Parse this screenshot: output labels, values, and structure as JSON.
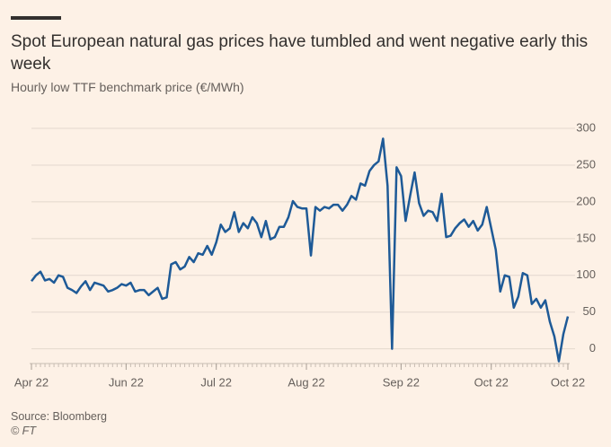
{
  "chart_data": {
    "type": "line",
    "title": "Spot European natural gas prices have tumbled and went negative early this week",
    "subtitle": "Hourly low TTF benchmark price (€/MWh)",
    "source": "Source: Bloomberg",
    "credit": "© FT",
    "color": "#1e5a97",
    "grid": true,
    "ylim": [
      -20,
      300
    ],
    "yticks": [
      0,
      50,
      100,
      150,
      200,
      250,
      300
    ],
    "categories": [
      "Apr 22",
      null,
      null,
      null,
      null,
      null,
      null,
      null,
      null,
      null,
      null,
      null,
      null,
      null,
      null,
      null,
      null,
      null,
      null,
      null,
      null,
      "Jun 22",
      null,
      null,
      null,
      null,
      null,
      null,
      null,
      null,
      null,
      null,
      null,
      null,
      null,
      null,
      null,
      null,
      null,
      null,
      null,
      "Jul 22",
      null,
      null,
      null,
      null,
      null,
      null,
      null,
      null,
      null,
      null,
      null,
      null,
      null,
      null,
      null,
      null,
      null,
      null,
      null,
      "Aug 22",
      null,
      null,
      null,
      null,
      null,
      null,
      null,
      null,
      null,
      null,
      null,
      null,
      null,
      null,
      null,
      null,
      null,
      null,
      null,
      null,
      "Sep 22",
      null,
      null,
      null,
      null,
      null,
      null,
      null,
      null,
      null,
      null,
      null,
      null,
      null,
      null,
      null,
      null,
      null,
      null,
      null,
      "Oct 22",
      null,
      null,
      null,
      null,
      null,
      null,
      null,
      null,
      null,
      null,
      null,
      null,
      null,
      null,
      null,
      null,
      "Oct 22"
    ],
    "values": [
      92,
      100,
      105,
      93,
      95,
      90,
      100,
      98,
      83,
      80,
      76,
      85,
      92,
      80,
      90,
      88,
      86,
      78,
      80,
      83,
      88,
      86,
      90,
      78,
      80,
      80,
      73,
      78,
      83,
      68,
      70,
      115,
      118,
      108,
      112,
      125,
      118,
      130,
      128,
      140,
      128,
      145,
      169,
      159,
      164,
      186,
      159,
      171,
      164,
      179,
      171,
      152,
      174,
      149,
      152,
      166,
      166,
      179,
      201,
      193,
      191,
      191,
      127,
      193,
      188,
      193,
      191,
      196,
      196,
      188,
      196,
      208,
      203,
      225,
      222,
      242,
      250,
      255,
      286,
      222,
      0,
      247,
      235,
      174,
      208,
      240,
      198,
      181,
      188,
      186,
      174,
      211,
      152,
      154,
      164,
      171,
      176,
      166,
      174,
      161,
      169,
      193,
      164,
      135,
      78,
      100,
      98,
      56,
      71,
      103,
      100,
      61,
      68,
      56,
      66,
      37,
      17,
      -17,
      20,
      44
    ]
  }
}
